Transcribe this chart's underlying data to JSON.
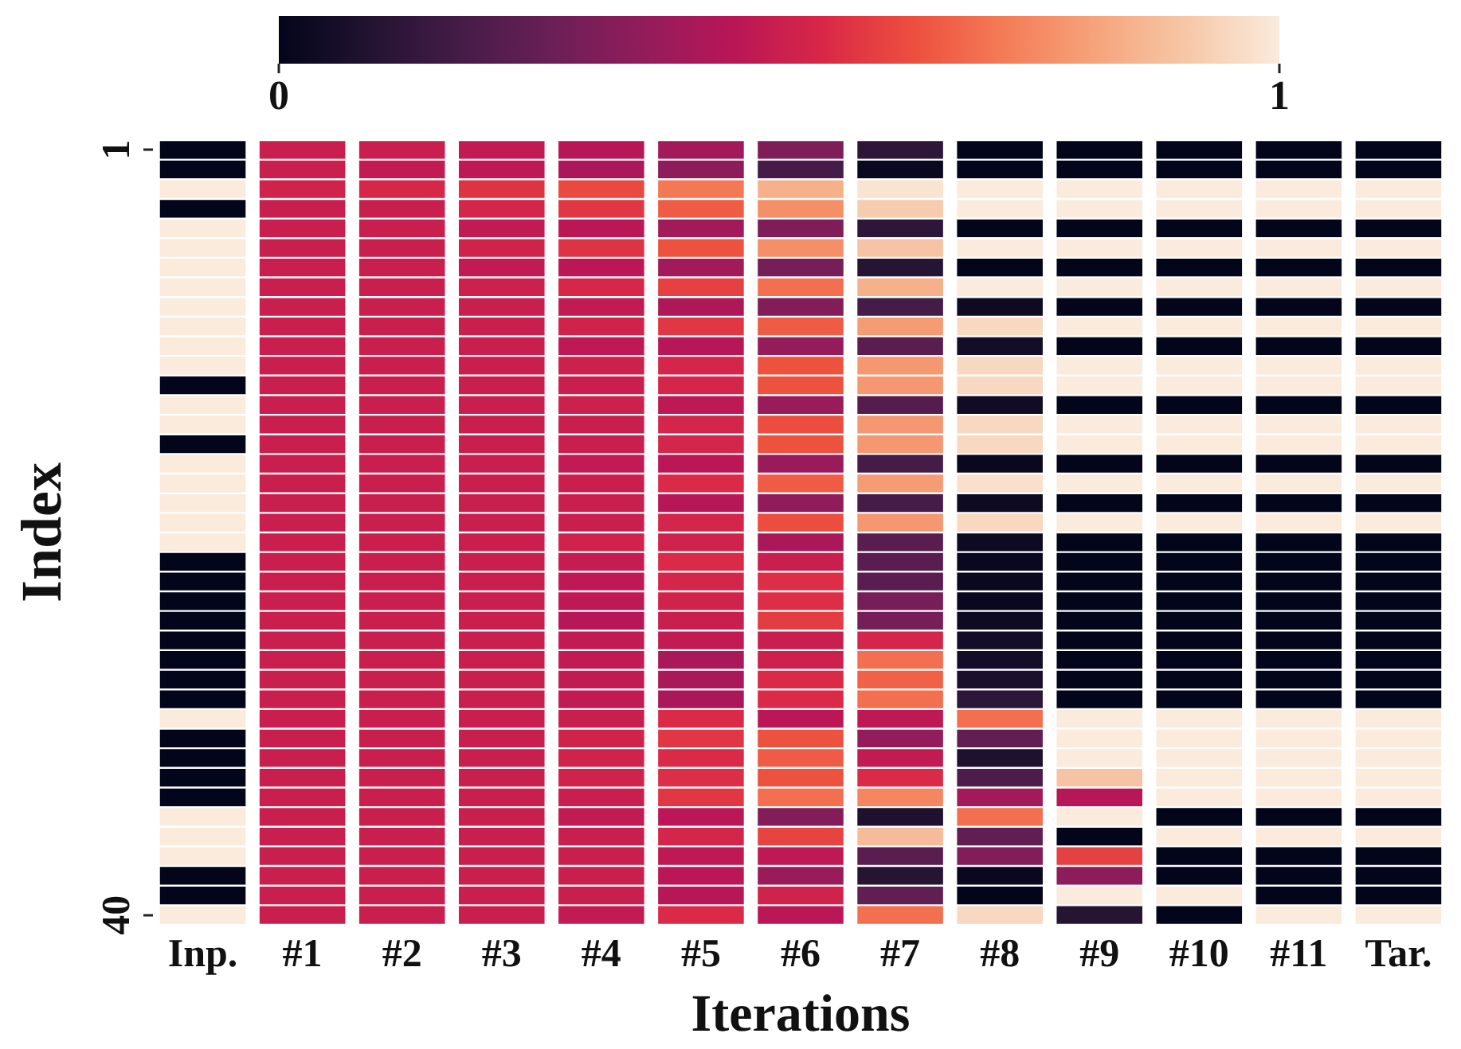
{
  "chart_data": {
    "type": "heatmap",
    "xlabel": "Iterations",
    "ylabel": "Index",
    "categories": [
      "Inp.",
      "#1",
      "#2",
      "#3",
      "#4",
      "#5",
      "#6",
      "#7",
      "#8",
      "#9",
      "#10",
      "#11",
      "Tar."
    ],
    "y_categories": [
      "1",
      null,
      null,
      null,
      null,
      null,
      null,
      null,
      null,
      null,
      null,
      null,
      null,
      null,
      null,
      null,
      null,
      null,
      null,
      null,
      null,
      null,
      null,
      null,
      null,
      null,
      null,
      null,
      null,
      null,
      null,
      null,
      null,
      null,
      null,
      null,
      null,
      null,
      null,
      "40"
    ],
    "clim": [
      0,
      1
    ],
    "cticks": [
      0,
      1
    ],
    "cells": [
      [
        0,
        0.5,
        0.5,
        0.48,
        0.45,
        0.4,
        0.32,
        0.12,
        0,
        0,
        0,
        0,
        0
      ],
      [
        0,
        0.5,
        0.48,
        0.47,
        0.42,
        0.35,
        0.18,
        0.02,
        0,
        0,
        0,
        0,
        0
      ],
      [
        1,
        0.52,
        0.54,
        0.57,
        0.62,
        0.72,
        0.85,
        0.98,
        1,
        1,
        1,
        1,
        1
      ],
      [
        0,
        0.5,
        0.5,
        0.53,
        0.58,
        0.66,
        0.77,
        0.92,
        1,
        1,
        1,
        1,
        1
      ],
      [
        1,
        0.5,
        0.5,
        0.48,
        0.46,
        0.4,
        0.32,
        0.12,
        0,
        0,
        0,
        0,
        0
      ],
      [
        1,
        0.5,
        0.5,
        0.52,
        0.57,
        0.64,
        0.77,
        0.9,
        1,
        1,
        1,
        1,
        1
      ],
      [
        1,
        0.5,
        0.5,
        0.48,
        0.46,
        0.4,
        0.3,
        0.1,
        0,
        0,
        0,
        0,
        0
      ],
      [
        1,
        0.5,
        0.5,
        0.51,
        0.54,
        0.6,
        0.7,
        0.85,
        1,
        1,
        1,
        1,
        1
      ],
      [
        1,
        0.5,
        0.5,
        0.5,
        0.48,
        0.43,
        0.33,
        0.18,
        0.03,
        0,
        0,
        0,
        0
      ],
      [
        1,
        0.5,
        0.5,
        0.5,
        0.52,
        0.58,
        0.66,
        0.8,
        0.95,
        1,
        1,
        1,
        1
      ],
      [
        1,
        0.5,
        0.5,
        0.5,
        0.47,
        0.45,
        0.37,
        0.23,
        0.05,
        0,
        0,
        0,
        0
      ],
      [
        1,
        0.5,
        0.5,
        0.5,
        0.51,
        0.53,
        0.64,
        0.79,
        0.95,
        1,
        1,
        1,
        1
      ],
      [
        0,
        0.5,
        0.5,
        0.5,
        0.5,
        0.53,
        0.64,
        0.79,
        0.95,
        1,
        1,
        1,
        1
      ],
      [
        1,
        0.5,
        0.5,
        0.5,
        0.51,
        0.47,
        0.38,
        0.22,
        0.04,
        0,
        0,
        0,
        0
      ],
      [
        1,
        0.5,
        0.5,
        0.5,
        0.5,
        0.53,
        0.63,
        0.79,
        0.95,
        1,
        1,
        1,
        1
      ],
      [
        0,
        0.5,
        0.5,
        0.5,
        0.5,
        0.53,
        0.64,
        0.79,
        0.95,
        1,
        1,
        1,
        1
      ],
      [
        1,
        0.5,
        0.5,
        0.5,
        0.48,
        0.46,
        0.38,
        0.18,
        0.02,
        0,
        0,
        0,
        0
      ],
      [
        1,
        0.5,
        0.5,
        0.5,
        0.5,
        0.55,
        0.66,
        0.8,
        0.97,
        1,
        1,
        1,
        1
      ],
      [
        1,
        0.5,
        0.5,
        0.5,
        0.5,
        0.45,
        0.36,
        0.18,
        0.03,
        0,
        0,
        0,
        0
      ],
      [
        1,
        0.5,
        0.5,
        0.5,
        0.5,
        0.53,
        0.63,
        0.79,
        0.95,
        1,
        1,
        1,
        1
      ],
      [
        1,
        0.5,
        0.5,
        0.5,
        0.52,
        0.52,
        0.42,
        0.23,
        0.03,
        0,
        0,
        0,
        0
      ],
      [
        0,
        0.5,
        0.5,
        0.5,
        0.49,
        0.55,
        0.5,
        0.23,
        0.02,
        0,
        0,
        0,
        0
      ],
      [
        0,
        0.5,
        0.5,
        0.5,
        0.47,
        0.53,
        0.56,
        0.23,
        0.02,
        0,
        0,
        0,
        0
      ],
      [
        0,
        0.5,
        0.5,
        0.5,
        0.47,
        0.52,
        0.56,
        0.3,
        0.02,
        0,
        0,
        0,
        0
      ],
      [
        0,
        0.5,
        0.5,
        0.5,
        0.45,
        0.5,
        0.59,
        0.3,
        0.03,
        0,
        0,
        0,
        0
      ],
      [
        0,
        0.5,
        0.5,
        0.5,
        0.48,
        0.48,
        0.5,
        0.53,
        0.05,
        0,
        0,
        0,
        0
      ],
      [
        0,
        0.5,
        0.5,
        0.5,
        0.48,
        0.42,
        0.51,
        0.7,
        0.05,
        0,
        0,
        0,
        0
      ],
      [
        0,
        0.5,
        0.5,
        0.5,
        0.48,
        0.42,
        0.55,
        0.67,
        0.07,
        0,
        0,
        0,
        0
      ],
      [
        0,
        0.5,
        0.5,
        0.5,
        0.48,
        0.42,
        0.55,
        0.7,
        0.12,
        0,
        0,
        0,
        0
      ],
      [
        1,
        0.5,
        0.5,
        0.5,
        0.5,
        0.55,
        0.46,
        0.47,
        0.7,
        1,
        1,
        1,
        1
      ],
      [
        0,
        0.5,
        0.5,
        0.5,
        0.52,
        0.58,
        0.64,
        0.37,
        0.25,
        1,
        1,
        1,
        1
      ],
      [
        0,
        0.5,
        0.5,
        0.5,
        0.52,
        0.55,
        0.66,
        0.48,
        0.08,
        1,
        1,
        1,
        1
      ],
      [
        0,
        0.5,
        0.5,
        0.5,
        0.52,
        0.56,
        0.64,
        0.55,
        0.2,
        0.9,
        1,
        1,
        1
      ],
      [
        0,
        0.5,
        0.5,
        0.5,
        0.5,
        0.58,
        0.7,
        0.75,
        0.4,
        0.45,
        1,
        1,
        1
      ],
      [
        1,
        0.5,
        0.5,
        0.5,
        0.48,
        0.46,
        0.33,
        0.08,
        0.7,
        1,
        0,
        0,
        0
      ],
      [
        1,
        0.5,
        0.5,
        0.5,
        0.5,
        0.53,
        0.61,
        0.88,
        0.25,
        0,
        1,
        1,
        1
      ],
      [
        1,
        0.5,
        0.5,
        0.5,
        0.5,
        0.47,
        0.47,
        0.23,
        0.33,
        0.6,
        0,
        0,
        0
      ],
      [
        0,
        0.5,
        0.5,
        0.5,
        0.5,
        0.46,
        0.38,
        0.1,
        0.02,
        0.35,
        0,
        0,
        0
      ],
      [
        0,
        0.5,
        0.5,
        0.5,
        0.5,
        0.45,
        0.52,
        0.25,
        0,
        1,
        1,
        0,
        0
      ],
      [
        1,
        0.5,
        0.5,
        0.5,
        0.48,
        0.55,
        0.46,
        0.7,
        0.95,
        0.1,
        0,
        1,
        1
      ]
    ]
  }
}
